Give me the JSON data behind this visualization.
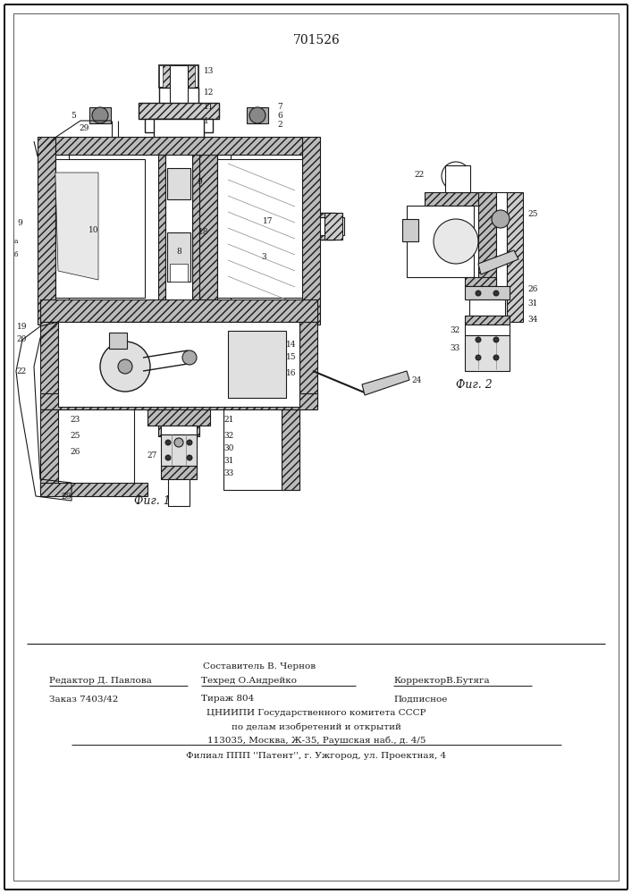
{
  "patent_number": "701526",
  "fig1_caption": "Фиг. 1",
  "fig2_caption": "Фиг. 2",
  "line_color": "#1a1a1a",
  "footer_lines": [
    "Составитель В. Чернов",
    "Редактор Д. Павлова   Техред О.Андрейко       КорректорВ.Бутяга",
    "Заказ 7403/42      Тираж 804         Подписное",
    "ЦНИИПИ Государственного комитета СССР",
    "по делам изобретений и открытий",
    "113035, Москва, Ж-35, Раушская наб., д. 4/5",
    "Филиал ППП ''Патент'', г. Ужгород, ул. Проектная, 4"
  ]
}
